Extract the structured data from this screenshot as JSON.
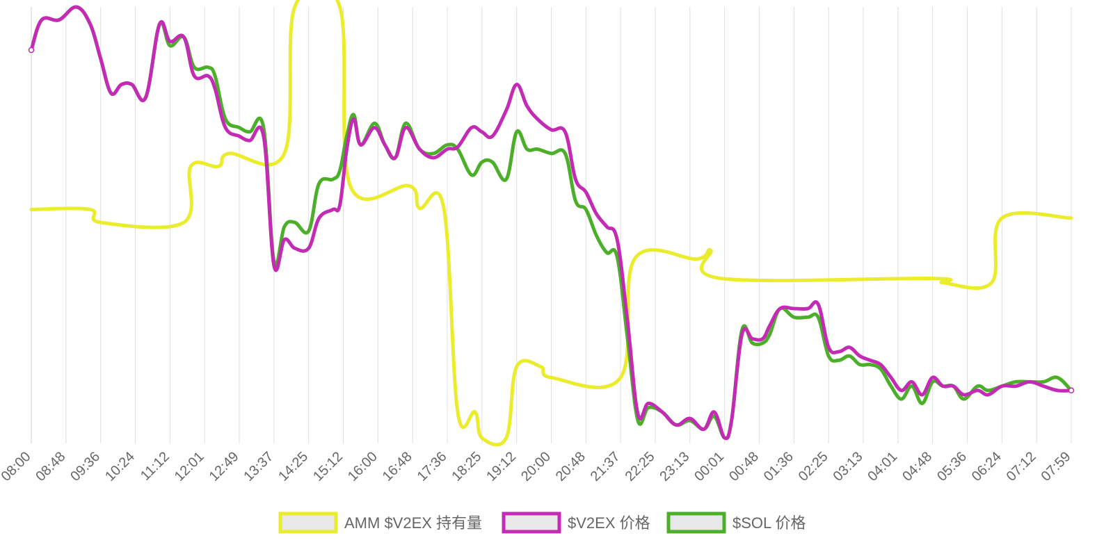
{
  "chart_data": {
    "type": "line",
    "title": "",
    "xlabel": "",
    "ylabel": "",
    "y_axis": "hidden; each series scaled independently",
    "grid": "vertical",
    "legend_position": "bottom",
    "x_ticks": [
      "08:00",
      "08:48",
      "09:36",
      "10:24",
      "11:12",
      "12:01",
      "12:49",
      "13:37",
      "14:25",
      "15:12",
      "16:00",
      "16:48",
      "17:36",
      "18:25",
      "19:12",
      "20:00",
      "20:48",
      "21:37",
      "22:25",
      "23:13",
      "00:01",
      "00:48",
      "01:36",
      "02:25",
      "03:13",
      "04:01",
      "04:48",
      "05:36",
      "06:24",
      "07:12",
      "07:59"
    ],
    "series": [
      {
        "name": "AMM $V2EX 持有量",
        "color": "#ecec2f",
        "points": [
          [
            0,
            0.47
          ],
          [
            1.7,
            0.47
          ],
          [
            2,
            0.5
          ],
          [
            4.4,
            0.5
          ],
          [
            4.6,
            0.37
          ],
          [
            5.4,
            0.37
          ],
          [
            5.7,
            0.34
          ],
          [
            7.3,
            0.34
          ],
          [
            7.6,
            0.0
          ],
          [
            8.9,
            0.0
          ],
          [
            9.2,
            0.415
          ],
          [
            10.9,
            0.415
          ],
          [
            11.2,
            0.467
          ],
          [
            11.9,
            0.467
          ],
          [
            12.3,
            0.94
          ],
          [
            12.8,
            0.94
          ],
          [
            13.0,
            1.0
          ],
          [
            13.7,
            1.0
          ],
          [
            14.0,
            0.835
          ],
          [
            14.7,
            0.835
          ],
          [
            15.0,
            0.86
          ],
          [
            17.0,
            0.86
          ],
          [
            17.4,
            0.585
          ],
          [
            19.2,
            0.585
          ],
          [
            19.6,
            0.565
          ],
          [
            19.9,
            0.63
          ],
          [
            26.0,
            0.63
          ],
          [
            26.3,
            0.64
          ],
          [
            27.7,
            0.64
          ],
          [
            28.0,
            0.49
          ],
          [
            30.0,
            0.49
          ]
        ]
      },
      {
        "name": "$V2EX 价格",
        "color": "#c42bb5",
        "points": [
          [
            0,
            0.1
          ],
          [
            0.3,
            0.03
          ],
          [
            0.8,
            0.03
          ],
          [
            1.3,
            0.0
          ],
          [
            1.7,
            0.04
          ],
          [
            2.0,
            0.12
          ],
          [
            2.3,
            0.2
          ],
          [
            2.6,
            0.18
          ],
          [
            2.9,
            0.18
          ],
          [
            3.3,
            0.21
          ],
          [
            3.7,
            0.04
          ],
          [
            4.0,
            0.08
          ],
          [
            4.4,
            0.07
          ],
          [
            4.7,
            0.16
          ],
          [
            5.1,
            0.16
          ],
          [
            5.3,
            0.19
          ],
          [
            5.6,
            0.28
          ],
          [
            6.0,
            0.3
          ],
          [
            6.3,
            0.31
          ],
          [
            6.7,
            0.3
          ],
          [
            7.0,
            0.6
          ],
          [
            7.3,
            0.54
          ],
          [
            7.6,
            0.56
          ],
          [
            8.0,
            0.56
          ],
          [
            8.3,
            0.49
          ],
          [
            8.7,
            0.47
          ],
          [
            8.9,
            0.46
          ],
          [
            9.1,
            0.33
          ],
          [
            9.3,
            0.26
          ],
          [
            9.5,
            0.32
          ],
          [
            9.9,
            0.28
          ],
          [
            10.2,
            0.32
          ],
          [
            10.5,
            0.35
          ],
          [
            10.8,
            0.28
          ],
          [
            11.2,
            0.33
          ],
          [
            11.6,
            0.35
          ],
          [
            12.0,
            0.33
          ],
          [
            12.3,
            0.325
          ],
          [
            12.7,
            0.28
          ],
          [
            13.0,
            0.29
          ],
          [
            13.3,
            0.3
          ],
          [
            13.7,
            0.24
          ],
          [
            14.0,
            0.18
          ],
          [
            14.3,
            0.23
          ],
          [
            14.6,
            0.26
          ],
          [
            15.0,
            0.285
          ],
          [
            15.4,
            0.29
          ],
          [
            15.7,
            0.4
          ],
          [
            16.0,
            0.43
          ],
          [
            16.3,
            0.48
          ],
          [
            16.6,
            0.51
          ],
          [
            16.9,
            0.54
          ],
          [
            17.2,
            0.73
          ],
          [
            17.5,
            0.945
          ],
          [
            17.8,
            0.92
          ],
          [
            18.2,
            0.94
          ],
          [
            18.6,
            0.97
          ],
          [
            19.0,
            0.955
          ],
          [
            19.4,
            0.98
          ],
          [
            19.7,
            0.94
          ],
          [
            20.0,
            1.0
          ],
          [
            20.2,
            0.96
          ],
          [
            20.5,
            0.76
          ],
          [
            20.8,
            0.77
          ],
          [
            21.1,
            0.77
          ],
          [
            21.3,
            0.74
          ],
          [
            21.6,
            0.7
          ],
          [
            22.0,
            0.7
          ],
          [
            22.4,
            0.7
          ],
          [
            22.7,
            0.69
          ],
          [
            23.0,
            0.79
          ],
          [
            23.3,
            0.8
          ],
          [
            23.6,
            0.79
          ],
          [
            23.9,
            0.81
          ],
          [
            24.2,
            0.82
          ],
          [
            24.5,
            0.83
          ],
          [
            24.8,
            0.86
          ],
          [
            25.1,
            0.89
          ],
          [
            25.4,
            0.87
          ],
          [
            25.7,
            0.9
          ],
          [
            26.0,
            0.86
          ],
          [
            26.3,
            0.88
          ],
          [
            26.6,
            0.88
          ],
          [
            26.9,
            0.9
          ],
          [
            27.3,
            0.89
          ],
          [
            27.6,
            0.9
          ],
          [
            28.0,
            0.88
          ],
          [
            28.4,
            0.88
          ],
          [
            28.8,
            0.87
          ],
          [
            29.2,
            0.88
          ],
          [
            29.6,
            0.89
          ],
          [
            30.0,
            0.89
          ]
        ]
      },
      {
        "name": "$SOL 价格",
        "color": "#4caf29",
        "points": [
          [
            0,
            0.1
          ],
          [
            0.3,
            0.03
          ],
          [
            0.8,
            0.03
          ],
          [
            1.3,
            0.0
          ],
          [
            1.7,
            0.04
          ],
          [
            2.0,
            0.12
          ],
          [
            2.3,
            0.2
          ],
          [
            2.6,
            0.18
          ],
          [
            2.9,
            0.18
          ],
          [
            3.3,
            0.21
          ],
          [
            3.7,
            0.04
          ],
          [
            4.0,
            0.09
          ],
          [
            4.4,
            0.07
          ],
          [
            4.7,
            0.14
          ],
          [
            5.1,
            0.14
          ],
          [
            5.3,
            0.16
          ],
          [
            5.6,
            0.26
          ],
          [
            6.0,
            0.28
          ],
          [
            6.3,
            0.29
          ],
          [
            6.7,
            0.28
          ],
          [
            7.0,
            0.59
          ],
          [
            7.3,
            0.51
          ],
          [
            7.6,
            0.5
          ],
          [
            8.0,
            0.52
          ],
          [
            8.3,
            0.41
          ],
          [
            8.7,
            0.4
          ],
          [
            8.9,
            0.38
          ],
          [
            9.1,
            0.3
          ],
          [
            9.3,
            0.25
          ],
          [
            9.5,
            0.32
          ],
          [
            9.9,
            0.27
          ],
          [
            10.2,
            0.32
          ],
          [
            10.5,
            0.35
          ],
          [
            10.8,
            0.27
          ],
          [
            11.2,
            0.33
          ],
          [
            11.6,
            0.34
          ],
          [
            12.0,
            0.32
          ],
          [
            12.3,
            0.33
          ],
          [
            12.7,
            0.39
          ],
          [
            13.0,
            0.36
          ],
          [
            13.3,
            0.36
          ],
          [
            13.7,
            0.4
          ],
          [
            14.0,
            0.29
          ],
          [
            14.3,
            0.33
          ],
          [
            14.6,
            0.33
          ],
          [
            15.0,
            0.34
          ],
          [
            15.4,
            0.34
          ],
          [
            15.7,
            0.45
          ],
          [
            16.0,
            0.47
          ],
          [
            16.3,
            0.53
          ],
          [
            16.6,
            0.57
          ],
          [
            16.9,
            0.58
          ],
          [
            17.2,
            0.77
          ],
          [
            17.5,
            0.96
          ],
          [
            17.8,
            0.93
          ],
          [
            18.2,
            0.94
          ],
          [
            18.6,
            0.97
          ],
          [
            19.0,
            0.96
          ],
          [
            19.4,
            0.98
          ],
          [
            19.7,
            0.95
          ],
          [
            20.0,
            1.0
          ],
          [
            20.2,
            0.96
          ],
          [
            20.5,
            0.75
          ],
          [
            20.8,
            0.78
          ],
          [
            21.1,
            0.78
          ],
          [
            21.3,
            0.76
          ],
          [
            21.6,
            0.7
          ],
          [
            22.0,
            0.72
          ],
          [
            22.4,
            0.72
          ],
          [
            22.7,
            0.72
          ],
          [
            23.0,
            0.81
          ],
          [
            23.3,
            0.82
          ],
          [
            23.6,
            0.81
          ],
          [
            23.9,
            0.83
          ],
          [
            24.2,
            0.83
          ],
          [
            24.5,
            0.84
          ],
          [
            24.8,
            0.88
          ],
          [
            25.1,
            0.91
          ],
          [
            25.4,
            0.88
          ],
          [
            25.7,
            0.92
          ],
          [
            26.0,
            0.87
          ],
          [
            26.3,
            0.88
          ],
          [
            26.6,
            0.88
          ],
          [
            26.9,
            0.91
          ],
          [
            27.3,
            0.88
          ],
          [
            27.6,
            0.89
          ],
          [
            28.0,
            0.88
          ],
          [
            28.4,
            0.87
          ],
          [
            28.8,
            0.87
          ],
          [
            29.2,
            0.87
          ],
          [
            29.6,
            0.86
          ],
          [
            30.0,
            0.89
          ]
        ]
      }
    ]
  }
}
